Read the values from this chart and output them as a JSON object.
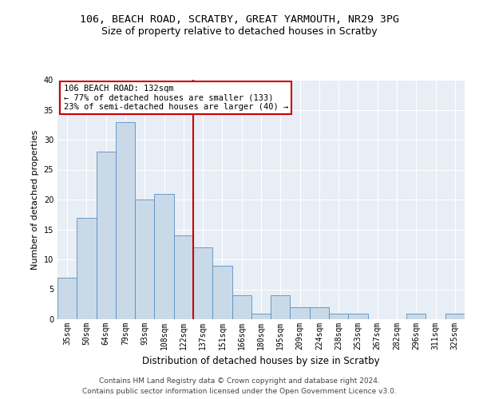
{
  "title1": "106, BEACH ROAD, SCRATBY, GREAT YARMOUTH, NR29 3PG",
  "title2": "Size of property relative to detached houses in Scratby",
  "xlabel": "Distribution of detached houses by size in Scratby",
  "ylabel": "Number of detached properties",
  "categories": [
    "35sqm",
    "50sqm",
    "64sqm",
    "79sqm",
    "93sqm",
    "108sqm",
    "122sqm",
    "137sqm",
    "151sqm",
    "166sqm",
    "180sqm",
    "195sqm",
    "209sqm",
    "224sqm",
    "238sqm",
    "253sqm",
    "267sqm",
    "282sqm",
    "296sqm",
    "311sqm",
    "325sqm"
  ],
  "values": [
    7,
    17,
    28,
    33,
    20,
    21,
    14,
    12,
    9,
    4,
    1,
    4,
    2,
    2,
    1,
    1,
    0,
    0,
    1,
    0,
    1
  ],
  "bar_color": "#c9d9e8",
  "bar_edge_color": "#5a8fc0",
  "marker_line_index": 7,
  "annotation_line1": "106 BEACH ROAD: 132sqm",
  "annotation_line2": "← 77% of detached houses are smaller (133)",
  "annotation_line3": "23% of semi-detached houses are larger (40) →",
  "annotation_box_color": "#ffffff",
  "annotation_box_edge_color": "#cc0000",
  "marker_line_color": "#cc0000",
  "ylim": [
    0,
    40
  ],
  "yticks": [
    0,
    5,
    10,
    15,
    20,
    25,
    30,
    35,
    40
  ],
  "footer1": "Contains HM Land Registry data © Crown copyright and database right 2024.",
  "footer2": "Contains public sector information licensed under the Open Government Licence v3.0.",
  "plot_bg_color": "#e8eef5",
  "title1_fontsize": 9.5,
  "title2_fontsize": 9,
  "xlabel_fontsize": 8.5,
  "ylabel_fontsize": 8,
  "tick_fontsize": 7,
  "footer_fontsize": 6.5,
  "ann_fontsize": 7.5
}
